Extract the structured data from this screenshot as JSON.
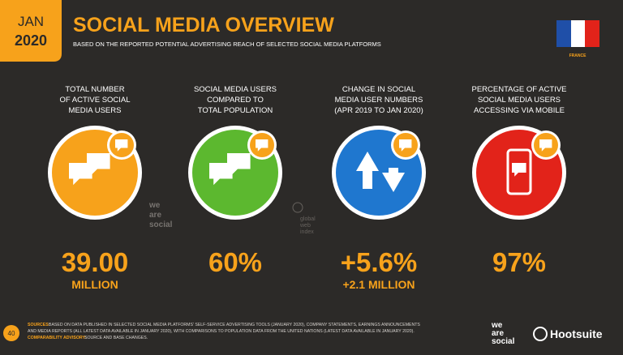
{
  "header": {
    "month": "JAN",
    "year": "2020",
    "title": "SOCIAL MEDIA OVERVIEW",
    "subtitle": "BASED ON THE REPORTED POTENTIAL ADVERTISING REACH OF SELECTED SOCIAL MEDIA PLATFORMS",
    "country": "FRANCE"
  },
  "stats": [
    {
      "label": [
        "TOTAL NUMBER",
        "OF ACTIVE SOCIAL",
        "MEDIA USERS"
      ],
      "value": "39.00",
      "sub": "MILLION",
      "color": "#f7a21b"
    },
    {
      "label": [
        "SOCIAL MEDIA USERS",
        "COMPARED TO",
        "TOTAL POPULATION"
      ],
      "value": "60%",
      "color": "#5cb82f"
    },
    {
      "label": [
        "CHANGE IN SOCIAL",
        "MEDIA USER NUMBERS",
        "(APR 2019 TO JAN 2020)"
      ],
      "value": "+5.6%",
      "sub": "+2.1 MILLION",
      "color": "#1f77cf"
    },
    {
      "label": [
        "PERCENTAGE OF ACTIVE",
        "SOCIAL MEDIA USERS",
        "ACCESSING VIA MOBILE"
      ],
      "value": "97%",
      "color": "#e2231a"
    }
  ],
  "watermarks": {
    "agency": [
      "we",
      "are",
      "social"
    ],
    "index": [
      "global",
      "web",
      "index"
    ]
  },
  "footer": {
    "page": "40",
    "sources_label": "SOURCES:",
    "sources": [
      "BASED ON DATA PUBLISHED IN SELECTED SOCIAL MEDIA PLATFORMS' SELF-SERVICE ADVERTISING TOOLS (JANUARY 2020), COMPANY STATEMENTS, EARNINGS ANNOUNCEMENTS",
      "AND MEDIA REPORTS (ALL LATEST DATA AVAILABLE IN JANUARY 2020), WITH COMPARISONS TO POPULATION DATA FROM THE UNITED NATIONS (LATEST DATA AVAILABLE IN JANUARY 2020)."
    ],
    "advisory_label": "COMPARABILITY ADVISORY:",
    "advisory": "SOURCE AND BASE CHANGES.",
    "brand1": [
      "we",
      "are",
      "social"
    ],
    "brand2": "Hootsuite"
  }
}
